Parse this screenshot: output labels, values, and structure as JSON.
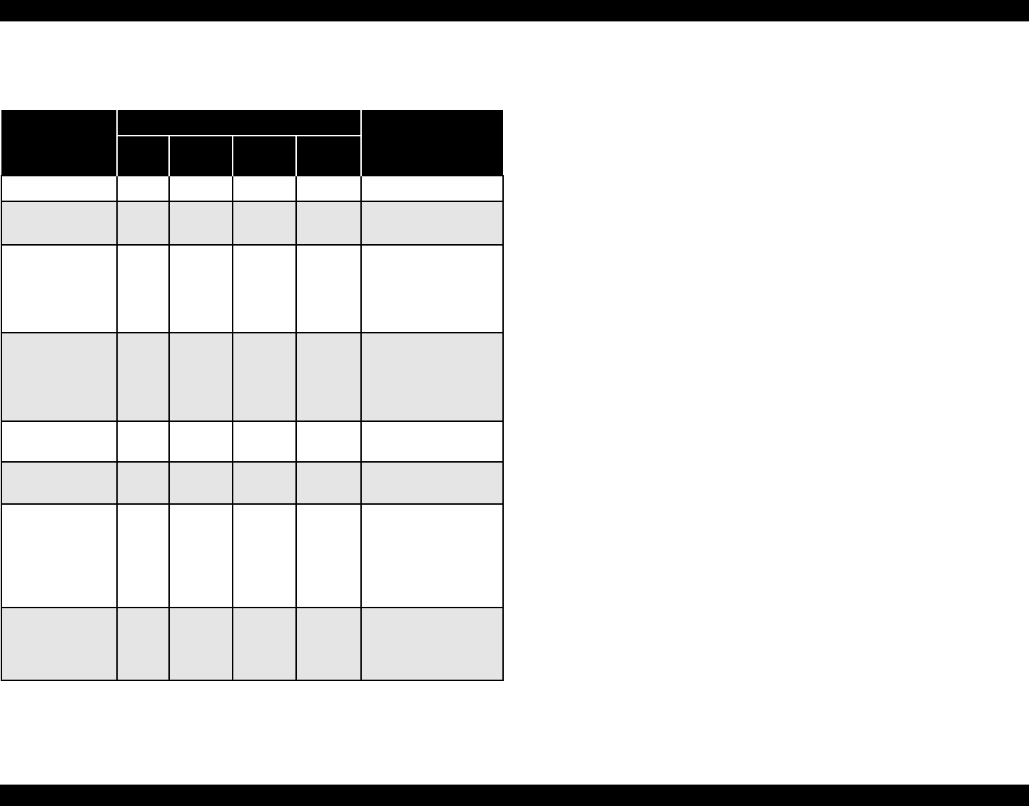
{
  "page": {
    "background_color": "#ffffff"
  },
  "top_banner": {
    "color": "#000000",
    "text": ""
  },
  "bottom_banner": {
    "color": "#000000",
    "text": ""
  },
  "table": {
    "colors": {
      "header_bg": "#000000",
      "header_divider": "#ffffff",
      "grid": "#000000",
      "row_bg": "#ffffff",
      "row_alt_bg": "#e5e5e5"
    },
    "header": {
      "row_label": "",
      "group_label": "",
      "sub_labels": [
        "",
        "",
        "",
        ""
      ],
      "trailing_label": ""
    },
    "rows": [
      {
        "cells": [
          "",
          "",
          "",
          "",
          "",
          ""
        ]
      },
      {
        "cells": [
          "",
          "",
          "",
          "",
          "",
          ""
        ]
      },
      {
        "cells": [
          "",
          "",
          "",
          "",
          "",
          ""
        ]
      },
      {
        "cells": [
          "",
          "",
          "",
          "",
          "",
          ""
        ]
      },
      {
        "cells": [
          "",
          "",
          "",
          "",
          "",
          ""
        ]
      },
      {
        "cells": [
          "",
          "",
          "",
          "",
          "",
          ""
        ]
      },
      {
        "cells": [
          "",
          "",
          "",
          "",
          "",
          ""
        ]
      },
      {
        "cells": [
          "",
          "",
          "",
          "",
          "",
          ""
        ]
      }
    ]
  }
}
